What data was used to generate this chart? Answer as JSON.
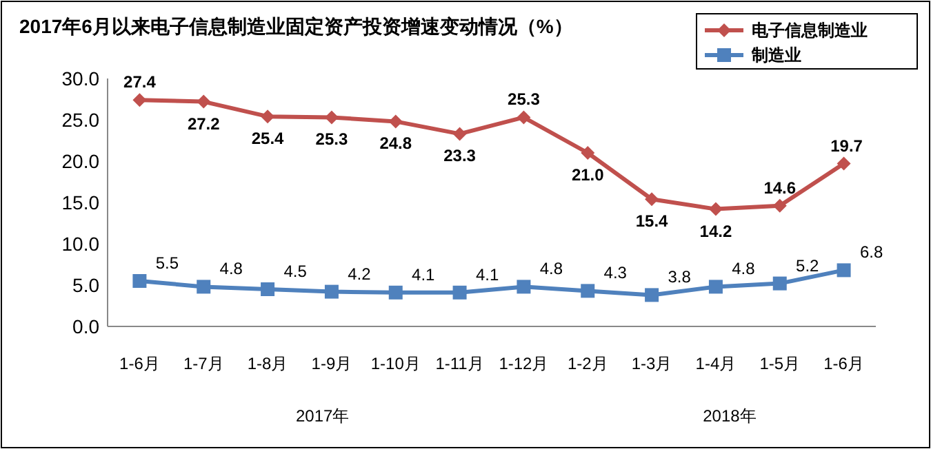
{
  "chart_data": {
    "type": "line",
    "title": "2017年6月以来电子信息制造业固定资产投资增速变动情况（%）",
    "categories": [
      "1-6月",
      "1-7月",
      "1-8月",
      "1-9月",
      "1-10月",
      "1-11月",
      "1-12月",
      "1-2月",
      "1-3月",
      "1-4月",
      "1-5月",
      "1-6月"
    ],
    "series": [
      {
        "name": "电子信息制造业",
        "color": "#c0504d",
        "marker": "diamond",
        "values": [
          27.4,
          27.2,
          25.4,
          25.3,
          24.8,
          23.3,
          25.3,
          21.0,
          15.4,
          14.2,
          14.6,
          19.7
        ],
        "value_labels": [
          "27.4",
          "27.2",
          "25.4",
          "25.3",
          "24.8",
          "23.3",
          "25.3",
          "21.0",
          "15.4",
          "14.2",
          "14.6",
          "19.7"
        ]
      },
      {
        "name": "制造业",
        "color": "#4f81bd",
        "marker": "square",
        "values": [
          5.5,
          4.8,
          4.5,
          4.2,
          4.1,
          4.1,
          4.8,
          4.3,
          3.8,
          4.8,
          5.2,
          6.8
        ],
        "value_labels": [
          "5.5",
          "4.8",
          "4.5",
          "4.2",
          "4.1",
          "4.1",
          "4.8",
          "4.3",
          "3.8",
          "4.8",
          "5.2",
          "6.8"
        ]
      }
    ],
    "ylim": [
      0,
      30
    ],
    "yticks": [
      {
        "value": 0,
        "label": "0.0"
      },
      {
        "value": 5,
        "label": "5.0"
      },
      {
        "value": 10,
        "label": "10.0"
      },
      {
        "value": 15,
        "label": "15.0"
      },
      {
        "value": 20,
        "label": "20.0"
      },
      {
        "value": 25,
        "label": "25.0"
      },
      {
        "value": 30,
        "label": "30.0"
      }
    ],
    "grid": false,
    "legend": "top right",
    "line_style": "solid",
    "annotations": [
      "2017年",
      "2018年"
    ]
  }
}
